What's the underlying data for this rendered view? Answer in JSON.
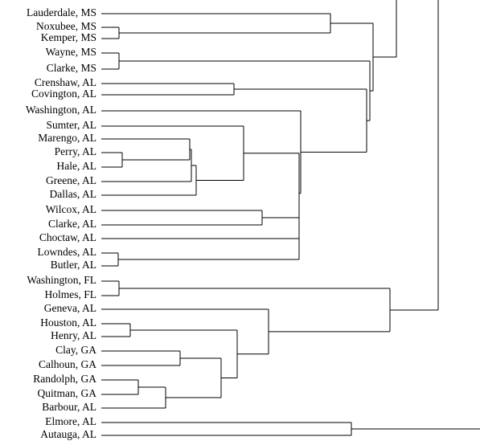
{
  "leaves": [
    "Lauderdale, MS",
    "Noxubee, MS",
    "Kemper, MS",
    "Wayne, MS",
    "Clarke, MS",
    "Crenshaw, AL",
    "Covington, AL",
    "Washington, AL",
    "Sumter, AL",
    "Marengo, AL",
    "Perry, AL",
    "Hale, AL",
    "Greene, AL",
    "Dallas, AL",
    "Wilcox, AL",
    "Clarke, AL",
    "Choctaw, AL",
    "Lowndes, AL",
    "Butler, AL",
    "Washington, FL",
    "Holmes, FL",
    "Geneva, AL",
    "Houston, AL",
    "Henry, AL",
    "Clay, GA",
    "Calhoun, GA",
    "Randolph, GA",
    "Quitman, GA",
    "Barbour, AL",
    "Elmore, AL",
    "Autauga, AL"
  ]
}
